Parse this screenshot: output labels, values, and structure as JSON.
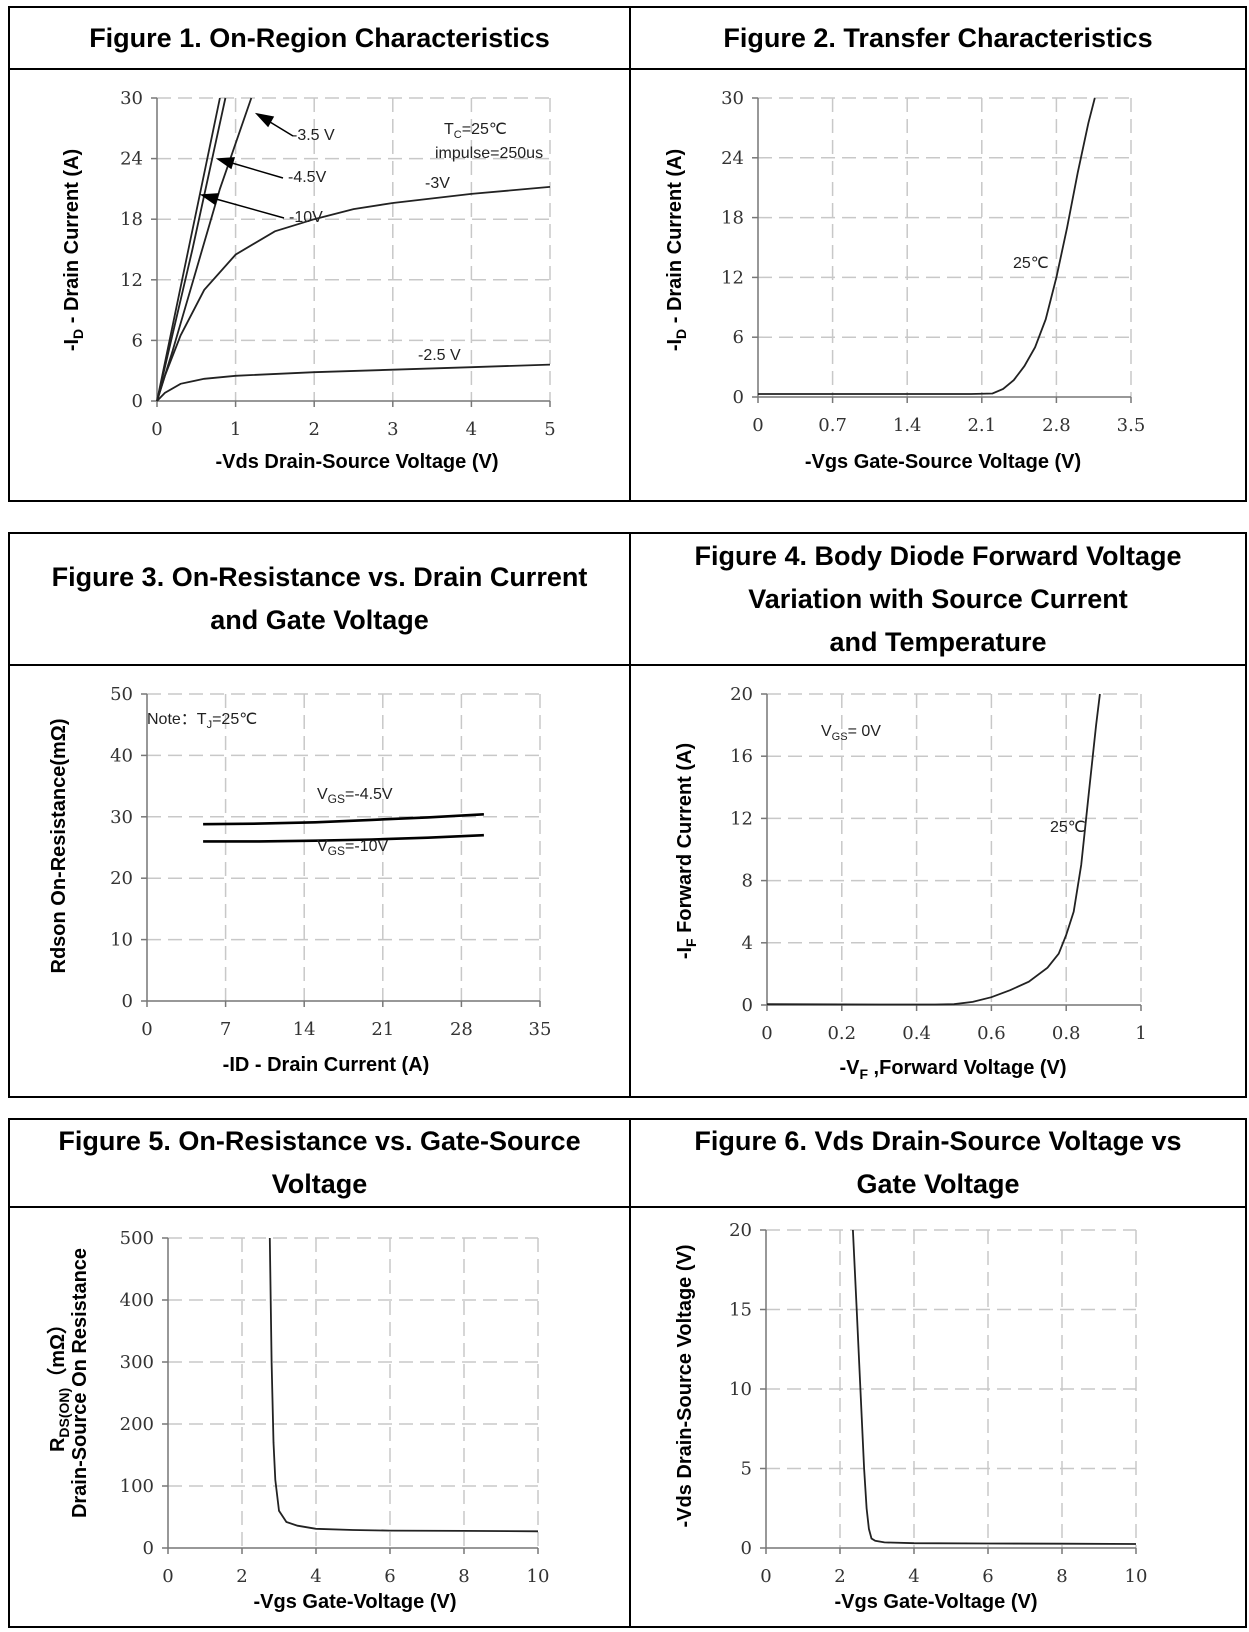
{
  "figures": [
    {
      "title": "Figure 1. On-Region Characteristics",
      "annotations": [
        "-3.5 V",
        "-4.5V",
        "-10V",
        "-3V",
        "-2.5 V",
        "T",
        "C",
        "=25℃",
        "impulse=250us"
      ],
      "chart_data": {
        "type": "line",
        "xlabel": "-Vds Drain-Source Voltage (V)",
        "ylabel": {
          "pre": "-I",
          "sub": "D",
          "post": " - Drain Current (A)"
        },
        "xlim": [
          0,
          5
        ],
        "ylim": [
          0,
          30
        ],
        "xticks": [
          "0",
          "1",
          "2",
          "3",
          "4",
          "5"
        ],
        "yticks": [
          "0",
          "6",
          "12",
          "18",
          "24",
          "30"
        ],
        "grid": true,
        "series": [
          {
            "name": "-10V",
            "x": [
              0,
              0.4,
              0.8
            ],
            "y": [
              0,
              15,
              30
            ]
          },
          {
            "name": "-4.5V",
            "x": [
              0,
              0.45,
              0.87
            ],
            "y": [
              0,
              15,
              30
            ]
          },
          {
            "name": "-3.5 V",
            "x": [
              0,
              0.2,
              0.5,
              0.8,
              1.2
            ],
            "y": [
              0,
              5,
              13,
              21,
              30
            ]
          },
          {
            "name": "-3V",
            "x": [
              0,
              0.1,
              0.3,
              0.6,
              1.0,
              1.5,
              2.0,
              2.5,
              3.0,
              4.0,
              5.0
            ],
            "y": [
              0,
              2.5,
              6.5,
              11,
              14.5,
              16.8,
              18,
              19,
              19.6,
              20.5,
              21.2
            ]
          },
          {
            "name": "-2.5 V",
            "x": [
              0,
              0.1,
              0.3,
              0.6,
              1.0,
              2.0,
              3.0,
              4.0,
              5.0
            ],
            "y": [
              0,
              0.8,
              1.7,
              2.2,
              2.5,
              2.85,
              3.1,
              3.35,
              3.6
            ]
          }
        ]
      }
    },
    {
      "title": "Figure 2. Transfer Characteristics",
      "annotations": [
        "25℃"
      ],
      "chart_data": {
        "type": "line",
        "xlabel": "-Vgs Gate-Source Voltage (V)",
        "ylabel": {
          "pre": "-I",
          "sub": "D",
          "post": " - Drain Current (A)"
        },
        "xlim": [
          0,
          3.5
        ],
        "ylim": [
          0,
          30
        ],
        "xticks": [
          "0",
          "0.7",
          "1.4",
          "2.1",
          "2.8",
          "3.5"
        ],
        "yticks": [
          "0",
          "6",
          "12",
          "18",
          "24",
          "30"
        ],
        "grid": true,
        "series": [
          {
            "name": "25℃",
            "x": [
              0,
              1.0,
              2.0,
              2.2,
              2.3,
              2.4,
              2.5,
              2.6,
              2.7,
              2.8,
              2.9,
              3.0,
              3.1,
              3.16
            ],
            "y": [
              0.3,
              0.3,
              0.3,
              0.35,
              0.8,
              1.7,
              3.1,
              5.0,
              7.8,
              12,
              17,
              22.5,
              27.5,
              30
            ]
          }
        ]
      }
    },
    {
      "title": "Figure 3. On-Resistance vs. Drain Current\nand Gate Voltage",
      "annotations": [
        "Note：T",
        "J",
        "=25℃",
        "V",
        "GS",
        "=-4.5V",
        "V",
        "GS",
        "=-10V"
      ],
      "chart_data": {
        "type": "line",
        "xlabel": "-ID - Drain Current (A)",
        "ylabel": "Rdson On-Resistance(mΩ)",
        "xlim": [
          0,
          35
        ],
        "ylim": [
          0,
          50
        ],
        "xticks": [
          "0",
          "7",
          "14",
          "21",
          "28",
          "35"
        ],
        "yticks": [
          "0",
          "10",
          "20",
          "30",
          "40",
          "50"
        ],
        "grid": true,
        "series": [
          {
            "name": "VGS=-4.5V",
            "x": [
              5,
              10,
              15,
              20,
              25,
              30
            ],
            "y": [
              28.8,
              28.9,
              29.1,
              29.5,
              29.9,
              30.4
            ]
          },
          {
            "name": "VGS=-10V",
            "x": [
              5,
              10,
              15,
              20,
              25,
              30
            ],
            "y": [
              26.0,
              26.0,
              26.1,
              26.3,
              26.6,
              27.0
            ]
          }
        ]
      }
    },
    {
      "title": "Figure 4. Body Diode Forward Voltage\nVariation with Source Current\nand Temperature",
      "annotations": [
        "V",
        "GS",
        "= 0V",
        "25℃"
      ],
      "chart_data": {
        "type": "line",
        "xlabel": {
          "pre": "-V",
          "sub": "F",
          "post": " ,Forward Voltage (V)"
        },
        "ylabel": {
          "pre": "-I",
          "sub": "F",
          "post": " Forward Current (A)"
        },
        "xlim": [
          0,
          1
        ],
        "ylim": [
          0,
          20
        ],
        "xticks": [
          "0",
          "0.2",
          "0.4",
          "0.6",
          "0.8",
          "1"
        ],
        "yticks": [
          "0",
          "4",
          "8",
          "12",
          "16",
          "20"
        ],
        "grid": true,
        "series": [
          {
            "name": "25℃",
            "x": [
              0,
              0.3,
              0.45,
              0.5,
              0.55,
              0.6,
              0.65,
              0.7,
              0.75,
              0.78,
              0.8,
              0.82,
              0.84,
              0.86,
              0.88,
              0.89
            ],
            "y": [
              0.05,
              0.03,
              0.03,
              0.05,
              0.2,
              0.5,
              0.95,
              1.5,
              2.4,
              3.3,
              4.5,
              6.0,
              9.0,
              13.5,
              18.0,
              20.0
            ]
          }
        ]
      }
    },
    {
      "title": "Figure 5. On-Resistance vs. Gate-Source\nVoltage",
      "chart_data": {
        "type": "line",
        "xlabel": "-Vgs Gate-Voltage (V)",
        "ylabel": {
          "pre": "R",
          "sub": "DS(ON)",
          "post": "（mΩ）",
          "line2": "Drain-Source On Resistance"
        },
        "xlim": [
          0,
          10
        ],
        "ylim": [
          0,
          500
        ],
        "xticks": [
          "0",
          "2",
          "4",
          "6",
          "8",
          "10"
        ],
        "yticks": [
          "0",
          "100",
          "200",
          "300",
          "400",
          "500"
        ],
        "grid": true,
        "series": [
          {
            "name": "RDS(ON)",
            "x": [
              2.75,
              2.8,
              2.85,
              2.9,
              3.0,
              3.2,
              3.5,
              4.0,
              5.0,
              6.0,
              8.0,
              10.0
            ],
            "y": [
              500,
              300,
              170,
              110,
              60,
              42,
              36,
              31,
              29,
              28,
              27.5,
              27
            ]
          }
        ]
      }
    },
    {
      "title": "Figure 6. Vds Drain-Source Voltage vs\nGate Voltage",
      "chart_data": {
        "type": "line",
        "xlabel": "-Vgs Gate-Voltage (V)",
        "ylabel": "-Vds Drain-Source Voltage (V)",
        "xlim": [
          0,
          10
        ],
        "ylim": [
          0,
          20
        ],
        "xticks": [
          "0",
          "2",
          "4",
          "6",
          "8",
          "10"
        ],
        "yticks": [
          "0",
          "5",
          "10",
          "15",
          "20"
        ],
        "grid": true,
        "series": [
          {
            "name": "Vds",
            "x": [
              2.35,
              2.45,
              2.55,
              2.65,
              2.72,
              2.78,
              2.85,
              2.95,
              3.2,
              4.0,
              6.0,
              8.0,
              10.0
            ],
            "y": [
              20,
              15,
              10,
              5,
              2.5,
              1.2,
              0.6,
              0.45,
              0.35,
              0.3,
              0.28,
              0.27,
              0.25
            ]
          }
        ]
      }
    }
  ]
}
